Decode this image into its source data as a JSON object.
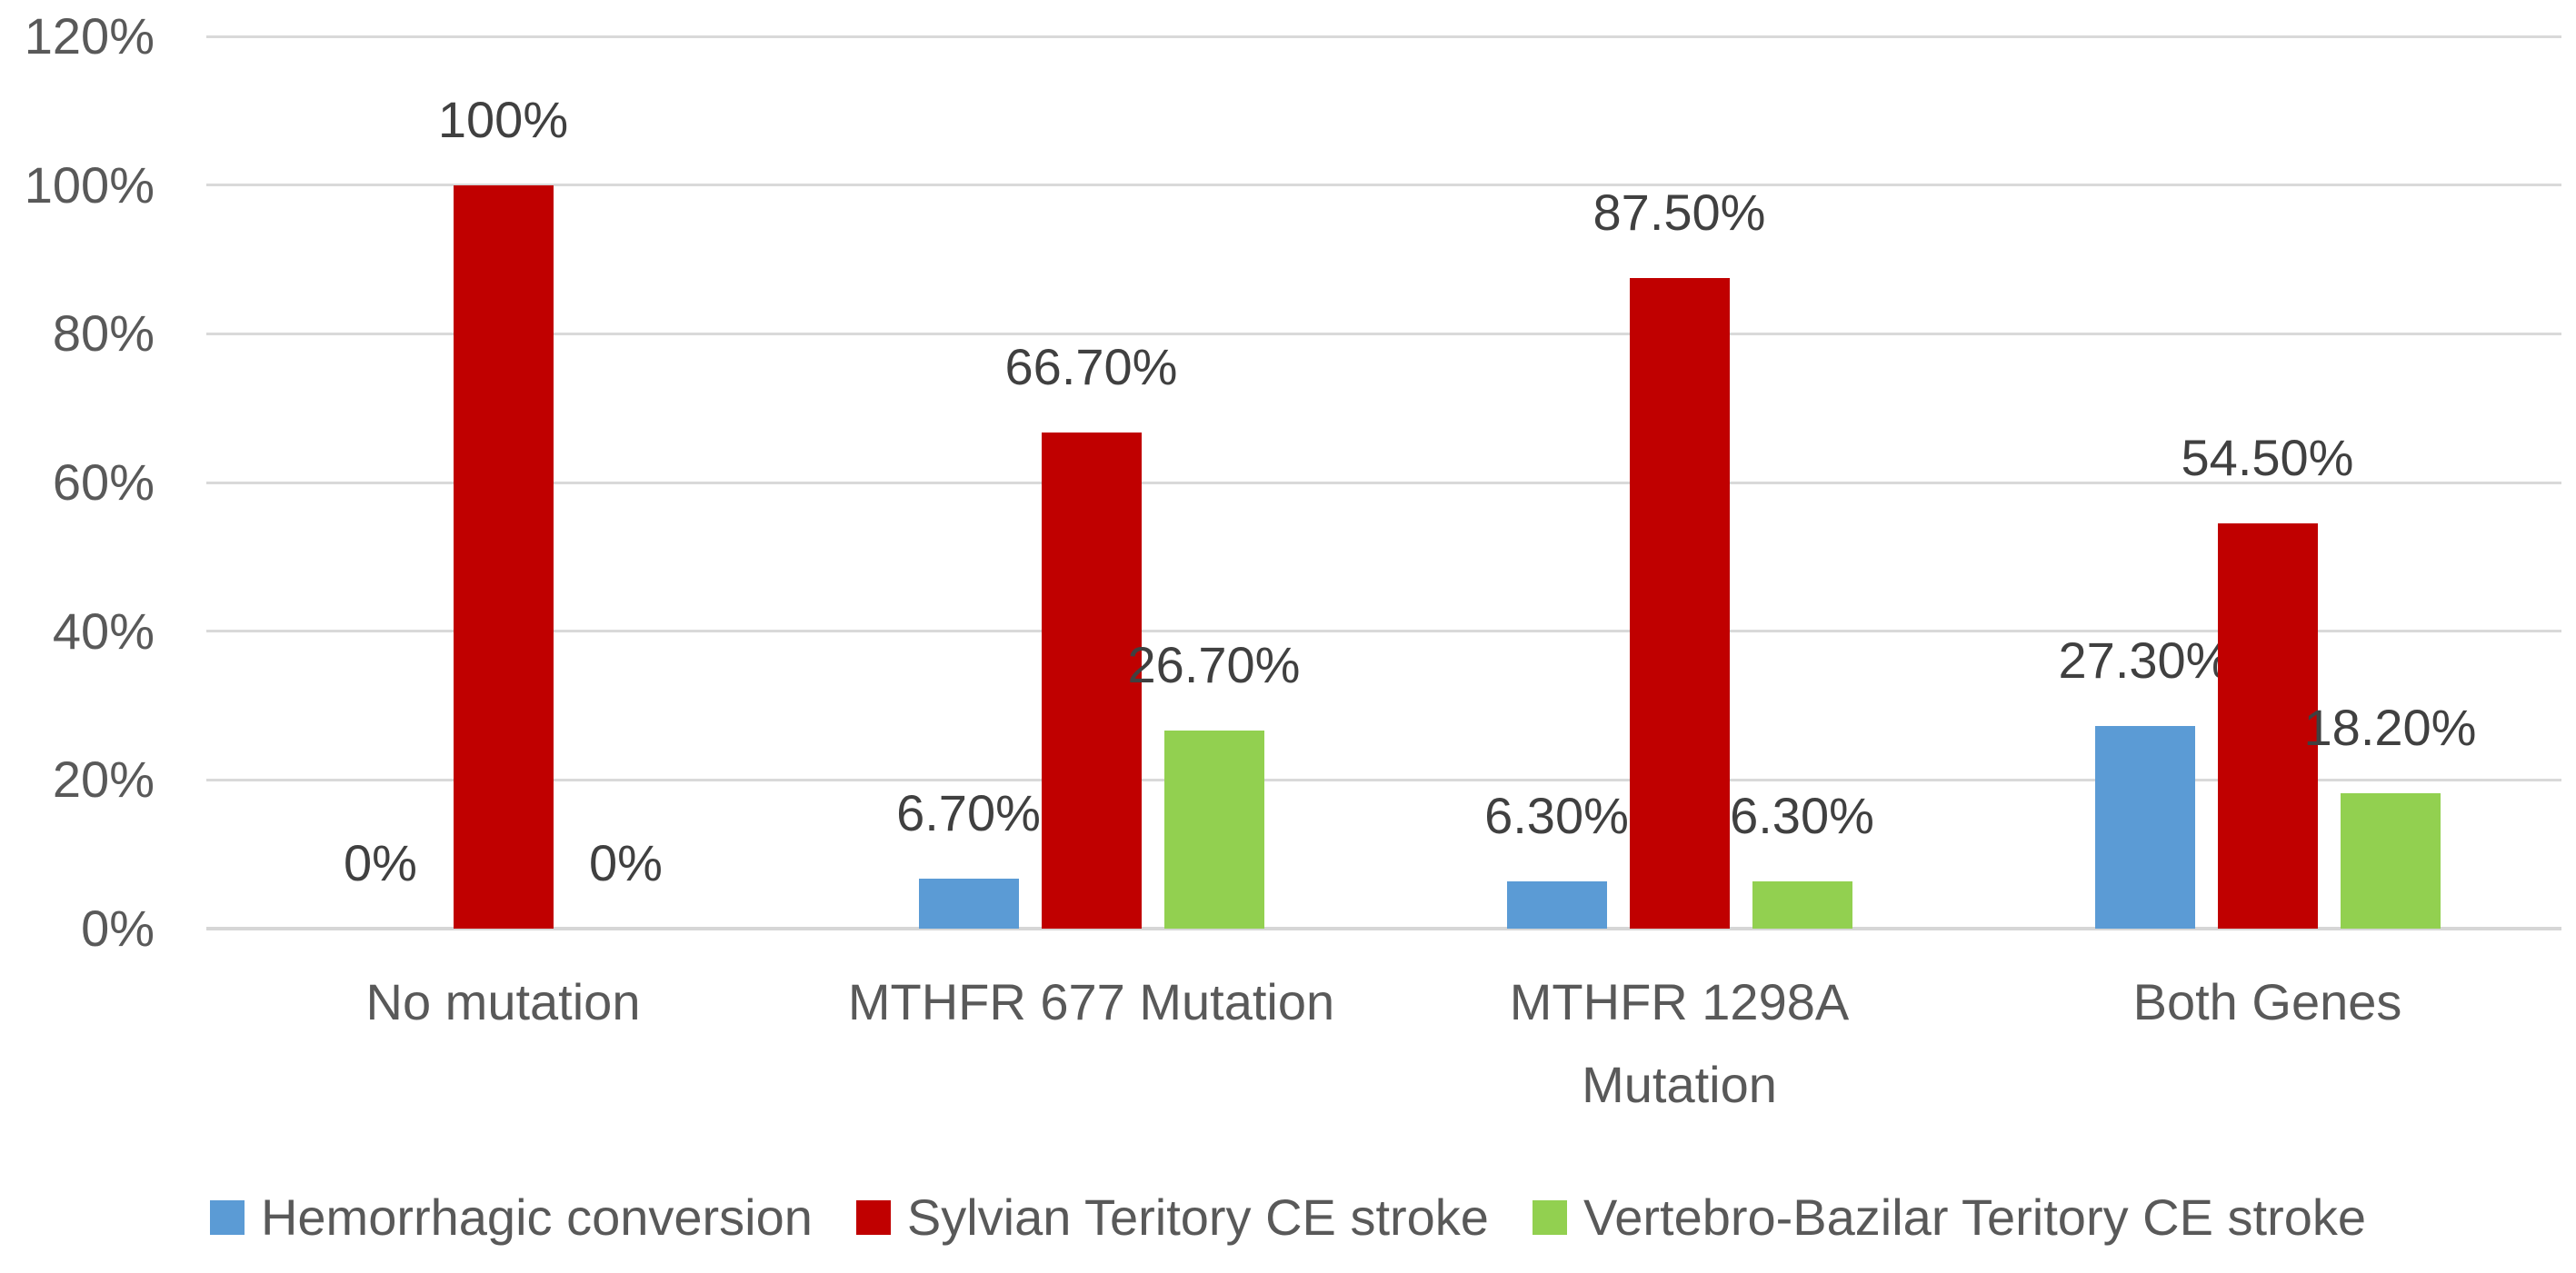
{
  "chart_data": {
    "type": "bar",
    "title": "",
    "categories": [
      "No mutation",
      "MTHFR 677 Mutation",
      "MTHFR 1298A\nMutation",
      "Both Genes"
    ],
    "series": [
      {
        "name": "Hemorrhagic conversion",
        "color": "#5B9BD5",
        "values": [
          0,
          6.7,
          6.3,
          27.3
        ],
        "labels": [
          "0%",
          "6.70%",
          "6.30%",
          "27.30%"
        ]
      },
      {
        "name": "Sylvian Teritory CE stroke",
        "color": "#C00000",
        "values": [
          100,
          66.7,
          87.5,
          54.5
        ],
        "labels": [
          "100%",
          "66.70%",
          "87.50%",
          "54.50%"
        ]
      },
      {
        "name": "Vertebro-Bazilar Teritory CE stroke",
        "color": "#92D050",
        "values": [
          0,
          26.7,
          6.3,
          18.2
        ],
        "labels": [
          "0%",
          "26.70%",
          "6.30%",
          "18.20%"
        ]
      }
    ],
    "y_axis": {
      "min": 0,
      "max": 120,
      "tick_step": 20,
      "ticks": [
        "0%",
        "20%",
        "40%",
        "60%",
        "80%",
        "100%",
        "120%"
      ]
    },
    "grid": true,
    "legend_position": "bottom",
    "styles": {
      "grid_color": "#D9D9D9",
      "baseline_color": "#D6D6D6",
      "axis_text_color": "#595959",
      "category_text_color": "#595959",
      "legend_text_color": "#595959",
      "data_label_color": "#404040",
      "background": "#FFFFFF"
    }
  }
}
